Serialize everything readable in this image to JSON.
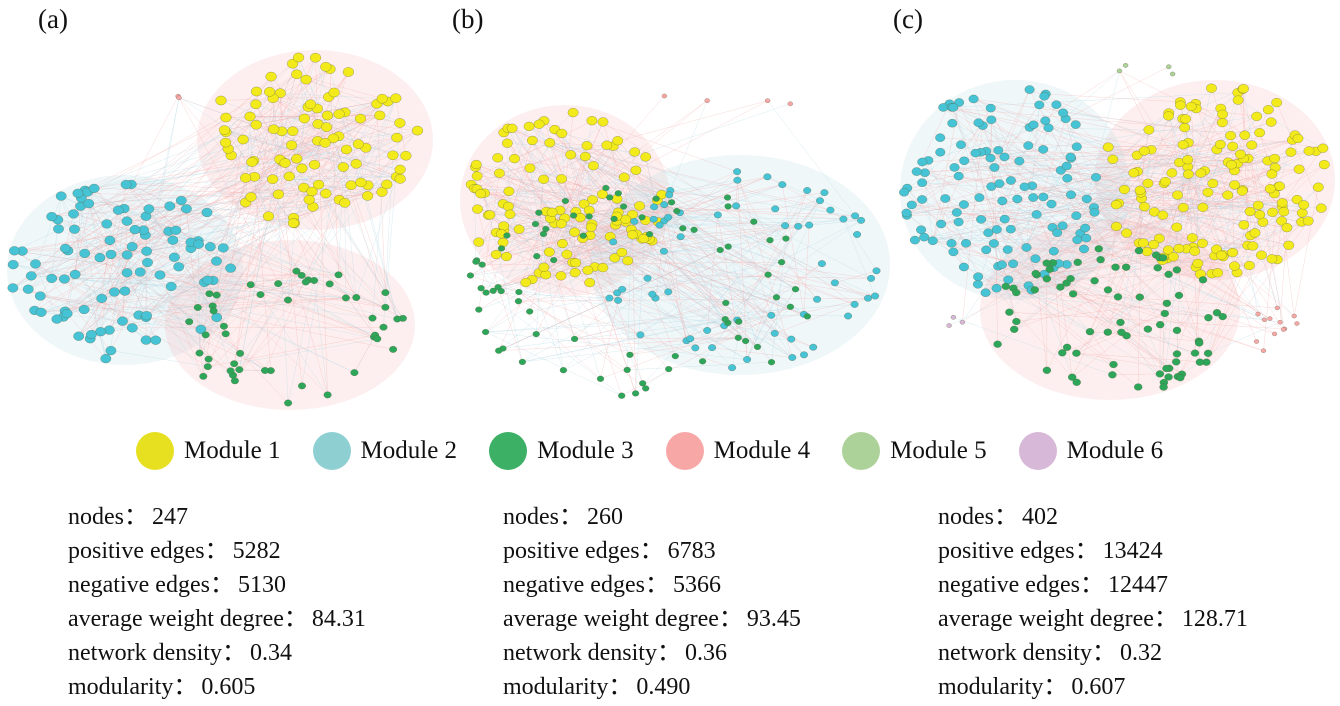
{
  "panels": [
    {
      "label": "(a)",
      "stats": [
        {
          "label": "nodes",
          "value": "247"
        },
        {
          "label": "positive  edges",
          "value": "5282"
        },
        {
          "label": "negative edges",
          "value": "5130"
        },
        {
          "label": "average weight degree",
          "value": "84.31"
        },
        {
          "label": "network density",
          "value": "0.34"
        },
        {
          "label": "modularity",
          "value": "0.605"
        }
      ]
    },
    {
      "label": "(b)",
      "stats": [
        {
          "label": "nodes",
          "value": "260"
        },
        {
          "label": "positive  edges",
          "value": "6783"
        },
        {
          "label": "negative edges",
          "value": "5366"
        },
        {
          "label": "average weight degree",
          "value": "93.45"
        },
        {
          "label": "network density",
          "value": "0.36"
        },
        {
          "label": "modularity",
          "value": "0.490"
        }
      ]
    },
    {
      "label": "(c)",
      "stats": [
        {
          "label": "nodes",
          "value": "402"
        },
        {
          "label": "positive  edges",
          "value": "13424"
        },
        {
          "label": "negative edges",
          "value": "12447"
        },
        {
          "label": "average weight degree",
          "value": "128.71"
        },
        {
          "label": "network density",
          "value": "0.32"
        },
        {
          "label": "modularity",
          "value": "0.607"
        }
      ]
    }
  ],
  "legend": [
    {
      "label": "Module 1",
      "color": "#e6e020"
    },
    {
      "label": "Module 2",
      "color": "#8ecfd2"
    },
    {
      "label": "Module 3",
      "color": "#3cb064"
    },
    {
      "label": "Module 4",
      "color": "#f8a7a7"
    },
    {
      "label": "Module 5",
      "color": "#acd29a"
    },
    {
      "label": "Module 6",
      "color": "#d8b8d8"
    }
  ],
  "colors": {
    "positive_edge": "#f4a6a6",
    "negative_edge": "#a9d3e0",
    "node_module_1": "#f2ea1a",
    "node_module_2": "#46c3d4",
    "node_module_3": "#2ea65a",
    "node_module_4": "#f8a7a7",
    "node_module_5": "#acd29a",
    "node_module_6": "#d8b8d8"
  }
}
